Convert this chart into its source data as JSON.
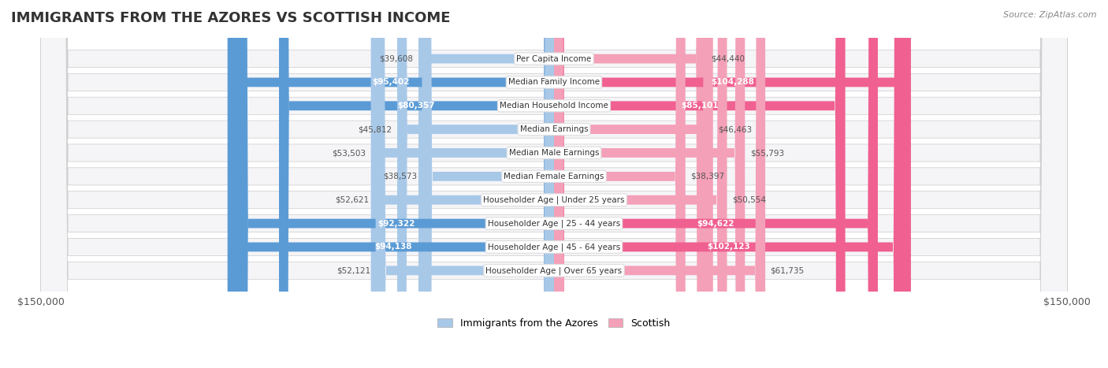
{
  "title": "IMMIGRANTS FROM THE AZORES VS SCOTTISH INCOME",
  "source": "Source: ZipAtlas.com",
  "categories": [
    "Per Capita Income",
    "Median Family Income",
    "Median Household Income",
    "Median Earnings",
    "Median Male Earnings",
    "Median Female Earnings",
    "Householder Age | Under 25 years",
    "Householder Age | 25 - 44 years",
    "Householder Age | 45 - 64 years",
    "Householder Age | Over 65 years"
  ],
  "azores_values": [
    39608,
    95402,
    80357,
    45812,
    53503,
    38573,
    52621,
    92322,
    94138,
    52121
  ],
  "scottish_values": [
    44440,
    104288,
    85101,
    46463,
    55793,
    38397,
    50554,
    94622,
    102123,
    61735
  ],
  "azores_color_light": "#a8c8e8",
  "azores_color_dark": "#5b9bd5",
  "scottish_color_light": "#f4a0b8",
  "scottish_color_dark": "#f06090",
  "max_value": 150000,
  "legend_azores": "Immigrants from the Azores",
  "legend_scottish": "Scottish",
  "background_row_color": "#f0f0f5",
  "background_white": "#ffffff"
}
